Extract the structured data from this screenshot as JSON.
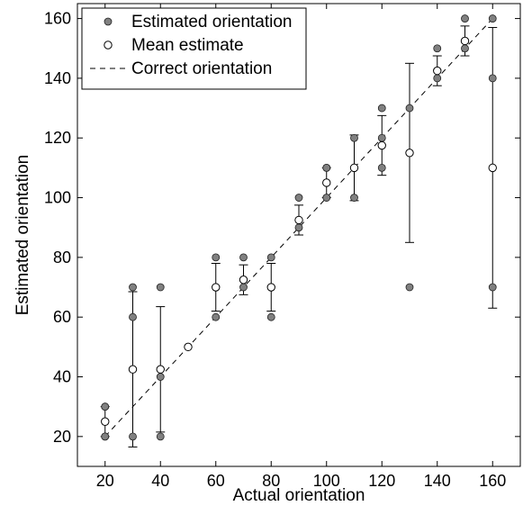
{
  "chart_data": {
    "type": "scatter",
    "xlabel": "Actual orientation",
    "ylabel": "Estimated orientation",
    "xlim": [
      10,
      170
    ],
    "ylim": [
      10,
      165
    ],
    "xticks": [
      20,
      40,
      60,
      80,
      100,
      120,
      140,
      160
    ],
    "yticks": [
      20,
      40,
      60,
      80,
      100,
      120,
      140,
      160
    ],
    "grid": false,
    "legend_position": "top-left",
    "legend": [
      "Estimated orientation",
      "Mean estimate",
      "Correct orientation"
    ],
    "colors": {
      "estimate": "#808080",
      "mean": "#ffffff",
      "line": "#000000"
    },
    "series": [
      {
        "name": "Estimated orientation",
        "points": [
          [
            20,
            20
          ],
          [
            20,
            20
          ],
          [
            20,
            30
          ],
          [
            20,
            30
          ],
          [
            30,
            20
          ],
          [
            30,
            60
          ],
          [
            30,
            70
          ],
          [
            40,
            20
          ],
          [
            40,
            40
          ],
          [
            40,
            70
          ],
          [
            50,
            50
          ],
          [
            60,
            60
          ],
          [
            60,
            70
          ],
          [
            60,
            80
          ],
          [
            70,
            70
          ],
          [
            70,
            80
          ],
          [
            80,
            60
          ],
          [
            80,
            70
          ],
          [
            80,
            80
          ],
          [
            90,
            90
          ],
          [
            90,
            100
          ],
          [
            100,
            100
          ],
          [
            100,
            110
          ],
          [
            100,
            110
          ],
          [
            110,
            100
          ],
          [
            110,
            120
          ],
          [
            120,
            110
          ],
          [
            120,
            120
          ],
          [
            120,
            130
          ],
          [
            130,
            70
          ],
          [
            130,
            130
          ],
          [
            140,
            140
          ],
          [
            140,
            150
          ],
          [
            150,
            150
          ],
          [
            150,
            160
          ],
          [
            160,
            70
          ],
          [
            160,
            140
          ],
          [
            160,
            160
          ]
        ]
      },
      {
        "name": "Mean estimate",
        "points": [
          [
            20,
            25
          ],
          [
            30,
            42.5
          ],
          [
            40,
            42.5
          ],
          [
            50,
            50
          ],
          [
            60,
            70
          ],
          [
            70,
            72.5
          ],
          [
            80,
            70
          ],
          [
            90,
            92.5
          ],
          [
            100,
            105
          ],
          [
            110,
            110
          ],
          [
            120,
            117.5
          ],
          [
            130,
            115
          ],
          [
            140,
            142.5
          ],
          [
            150,
            152.5
          ],
          [
            160,
            110
          ]
        ],
        "error": [
          5,
          26,
          21,
          0,
          8,
          5,
          8,
          5,
          5,
          11,
          10,
          30,
          5,
          5,
          47
        ]
      },
      {
        "name": "Correct orientation",
        "line": [
          [
            20,
            20
          ],
          [
            160,
            160
          ]
        ]
      }
    ]
  }
}
